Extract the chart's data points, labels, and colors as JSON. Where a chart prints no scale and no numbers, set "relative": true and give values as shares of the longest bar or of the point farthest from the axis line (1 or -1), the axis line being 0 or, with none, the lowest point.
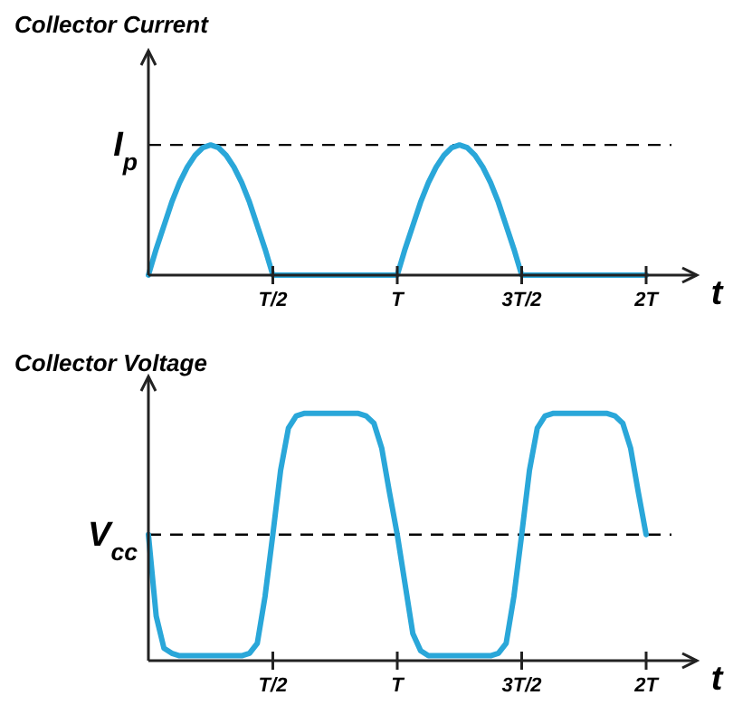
{
  "chart_data": [
    {
      "type": "line",
      "title": "Collector Current",
      "xlabel": "t",
      "relative": true,
      "tick_labels": "x",
      "grid": false,
      "line_style": "solid",
      "categories": [
        null,
        null,
        null,
        null,
        null,
        null,
        null,
        null,
        null,
        null,
        null,
        null,
        null,
        null,
        null,
        null,
        "T/2",
        null,
        null,
        null,
        null,
        null,
        null,
        null,
        null,
        null,
        null,
        null,
        null,
        null,
        null,
        null,
        "T",
        null,
        null,
        null,
        null,
        null,
        null,
        null,
        null,
        null,
        null,
        null,
        null,
        null,
        null,
        null,
        "3T/2",
        null,
        null,
        null,
        null,
        null,
        null,
        null,
        null,
        null,
        null,
        null,
        null,
        null,
        null,
        null,
        "2T"
      ],
      "ref_lines": [
        {
          "axis": "y",
          "value": 1,
          "label": "I$_{p}$",
          "color": "#000000",
          "line_style": "dashed"
        }
      ],
      "series": [
        {
          "color": "#2aa7d9",
          "values": [
            0,
            0.2,
            0.38,
            0.56,
            0.71,
            0.83,
            0.92,
            0.98,
            1,
            0.98,
            0.92,
            0.83,
            0.71,
            0.56,
            0.38,
            0.2,
            0,
            0,
            0,
            0,
            0,
            0,
            0,
            0,
            0,
            0,
            0,
            0,
            0,
            0,
            0,
            0,
            0,
            0.2,
            0.38,
            0.56,
            0.71,
            0.83,
            0.92,
            0.98,
            1,
            0.98,
            0.92,
            0.83,
            0.71,
            0.56,
            0.38,
            0.2,
            0,
            0,
            0,
            0,
            0,
            0,
            0,
            0,
            0,
            0,
            0,
            0,
            0,
            0,
            0,
            0,
            0
          ]
        }
      ]
    },
    {
      "type": "line",
      "title": "Collector Voltage",
      "xlabel": "t",
      "relative": true,
      "tick_labels": "x",
      "grid": false,
      "line_style": "solid",
      "categories": [
        null,
        null,
        null,
        null,
        null,
        null,
        null,
        null,
        null,
        null,
        null,
        null,
        null,
        null,
        null,
        null,
        "T/2",
        null,
        null,
        null,
        null,
        null,
        null,
        null,
        null,
        null,
        null,
        null,
        null,
        null,
        null,
        null,
        "T",
        null,
        null,
        null,
        null,
        null,
        null,
        null,
        null,
        null,
        null,
        null,
        null,
        null,
        null,
        null,
        "3T/2",
        null,
        null,
        null,
        null,
        null,
        null,
        null,
        null,
        null,
        null,
        null,
        null,
        null,
        null,
        null,
        "2T"
      ],
      "ref_lines": [
        {
          "axis": "y",
          "value": 0.51,
          "label": "V$_{cc}$",
          "color": "#000000",
          "line_style": "dashed"
        }
      ],
      "series": [
        {
          "color": "#2aa7d9",
          "values": [
            0.51,
            0.18,
            0.05,
            0.03,
            0.02,
            0.02,
            0.02,
            0.02,
            0.02,
            0.02,
            0.02,
            0.02,
            0.02,
            0.03,
            0.07,
            0.26,
            0.51,
            0.77,
            0.94,
            0.99,
            1,
            1,
            1,
            1,
            1,
            1,
            1,
            1,
            0.99,
            0.96,
            0.86,
            0.68,
            0.51,
            0.31,
            0.11,
            0.04,
            0.02,
            0.02,
            0.02,
            0.02,
            0.02,
            0.02,
            0.02,
            0.02,
            0.02,
            0.03,
            0.07,
            0.26,
            0.51,
            0.77,
            0.94,
            0.99,
            1,
            1,
            1,
            1,
            1,
            1,
            1,
            1,
            0.99,
            0.96,
            0.86,
            0.68,
            0.51
          ]
        }
      ]
    }
  ]
}
